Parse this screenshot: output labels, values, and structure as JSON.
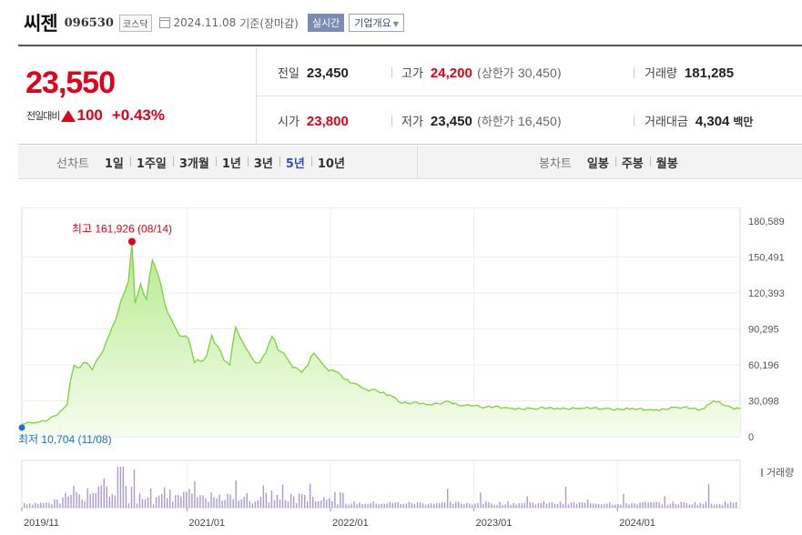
{
  "header": {
    "name": "씨젠",
    "code": "096530",
    "market": "코스닥",
    "date": "2024.11.08",
    "basis": "기준(장마감)",
    "realtime_label": "실시간",
    "overview_label": "기업개요"
  },
  "quote": {
    "price": "23,550",
    "change_label": "전일대비",
    "change_direction": "up",
    "change_amount": "100",
    "change_percent": "+0.43%",
    "prev": {
      "label": "전일",
      "value": "23,450"
    },
    "high": {
      "label": "고가",
      "value": "24,200",
      "sub_label": "(상한가",
      "sub_value": "30,450",
      "sub_close": ")"
    },
    "volume": {
      "label": "거래량",
      "value": "181,285"
    },
    "open": {
      "label": "시가",
      "value": "23,800"
    },
    "low": {
      "label": "저가",
      "value": "23,450",
      "sub_label": "(하한가",
      "sub_value": "16,450",
      "sub_close": ")"
    },
    "amount": {
      "label": "거래대금",
      "value": "4,304",
      "unit": "백만"
    }
  },
  "line_chart": {
    "label": "선차트",
    "periods": [
      "1일",
      "1주일",
      "3개월",
      "1년",
      "3년",
      "5년",
      "10년"
    ],
    "active": "5년"
  },
  "candle_chart": {
    "label": "봉차트",
    "periods": [
      "일봉",
      "주봉",
      "월봉"
    ]
  },
  "colors": {
    "up": "#e3001b",
    "line": "#7ed13e",
    "fill_top": "#b6ea8d",
    "fill_bottom": "#f6fdef",
    "active": "#3154b8",
    "low_marker": "#1e6fd6",
    "volume": "#a99ad6"
  },
  "chart_data": {
    "type": "area",
    "y_ticks": [
      "180,589",
      "150,491",
      "120,393",
      "90,295",
      "60,196",
      "30,098",
      "0"
    ],
    "ylim": [
      0,
      180589
    ],
    "x_ticks": [
      "2019/11",
      "2021/01",
      "2022/01",
      "2023/01",
      "2024/01"
    ],
    "xlim": [
      "2019-11-08",
      "2024-11-08"
    ],
    "max_annotation": {
      "label": "최고",
      "value": "161,926",
      "date": "(08/14)",
      "x": "2020-08-14",
      "y": 161926
    },
    "min_annotation": {
      "label": "최저",
      "value": "10,704",
      "date": "(11/08)",
      "x": "2019-11-08",
      "y": 10704
    },
    "volume_label": "거래량",
    "series": [
      {
        "x": [
          "2019-11-08",
          "2019-12-15",
          "2020-01-15",
          "2020-02-05",
          "2020-02-20",
          "2020-03-02",
          "2020-03-10",
          "2020-03-20",
          "2020-04-05",
          "2020-04-20",
          "2020-05-05",
          "2020-05-25",
          "2020-06-10",
          "2020-06-25",
          "2020-07-10",
          "2020-07-25",
          "2020-08-05",
          "2020-08-14",
          "2020-08-22",
          "2020-09-05",
          "2020-09-20",
          "2020-10-05",
          "2020-10-20",
          "2020-11-05",
          "2020-11-20",
          "2020-12-05",
          "2020-12-20",
          "2021-01-05",
          "2021-01-20",
          "2021-02-05",
          "2021-02-20",
          "2021-03-05",
          "2021-03-20",
          "2021-04-05",
          "2021-04-20",
          "2021-05-05",
          "2021-05-25",
          "2021-06-15",
          "2021-07-05",
          "2021-07-20",
          "2021-08-05",
          "2021-08-20",
          "2021-09-05",
          "2021-09-20",
          "2021-10-05",
          "2021-10-20",
          "2021-11-05",
          "2021-11-20",
          "2021-12-05",
          "2021-12-20",
          "2022-01-05",
          "2022-01-20",
          "2022-02-05",
          "2022-02-20",
          "2022-03-10",
          "2022-04-01",
          "2022-05-01",
          "2022-06-01",
          "2022-07-01",
          "2022-08-01",
          "2022-09-01",
          "2022-10-01",
          "2022-11-01",
          "2022-12-01",
          "2023-01-01",
          "2023-02-01",
          "2023-04-01",
          "2023-06-01",
          "2023-08-01",
          "2023-10-01",
          "2023-12-01",
          "2024-02-01",
          "2024-04-01",
          "2024-06-01",
          "2024-08-01",
          "2024-09-01",
          "2024-10-01",
          "2024-11-08"
        ],
        "y": [
          10704,
          12000,
          14500,
          18000,
          23000,
          27000,
          46000,
          60000,
          58000,
          62000,
          56000,
          68000,
          80000,
          92000,
          105000,
          120000,
          130000,
          161926,
          112000,
          128000,
          115000,
          148000,
          135000,
          112000,
          100000,
          90000,
          84000,
          82000,
          62000,
          63000,
          68000,
          85000,
          76000,
          64000,
          60000,
          92000,
          78000,
          66000,
          62000,
          70000,
          84000,
          73000,
          70000,
          62000,
          58000,
          54000,
          60000,
          70000,
          64000,
          58000,
          56000,
          54000,
          48000,
          45000,
          44000,
          40000,
          38000,
          35000,
          28000,
          29000,
          27000,
          28000,
          29000,
          26000,
          26000,
          25000,
          24000,
          23500,
          24000,
          23800,
          23600,
          23000,
          22500,
          24500,
          23000,
          30000,
          26000,
          23550
        ]
      }
    ]
  }
}
